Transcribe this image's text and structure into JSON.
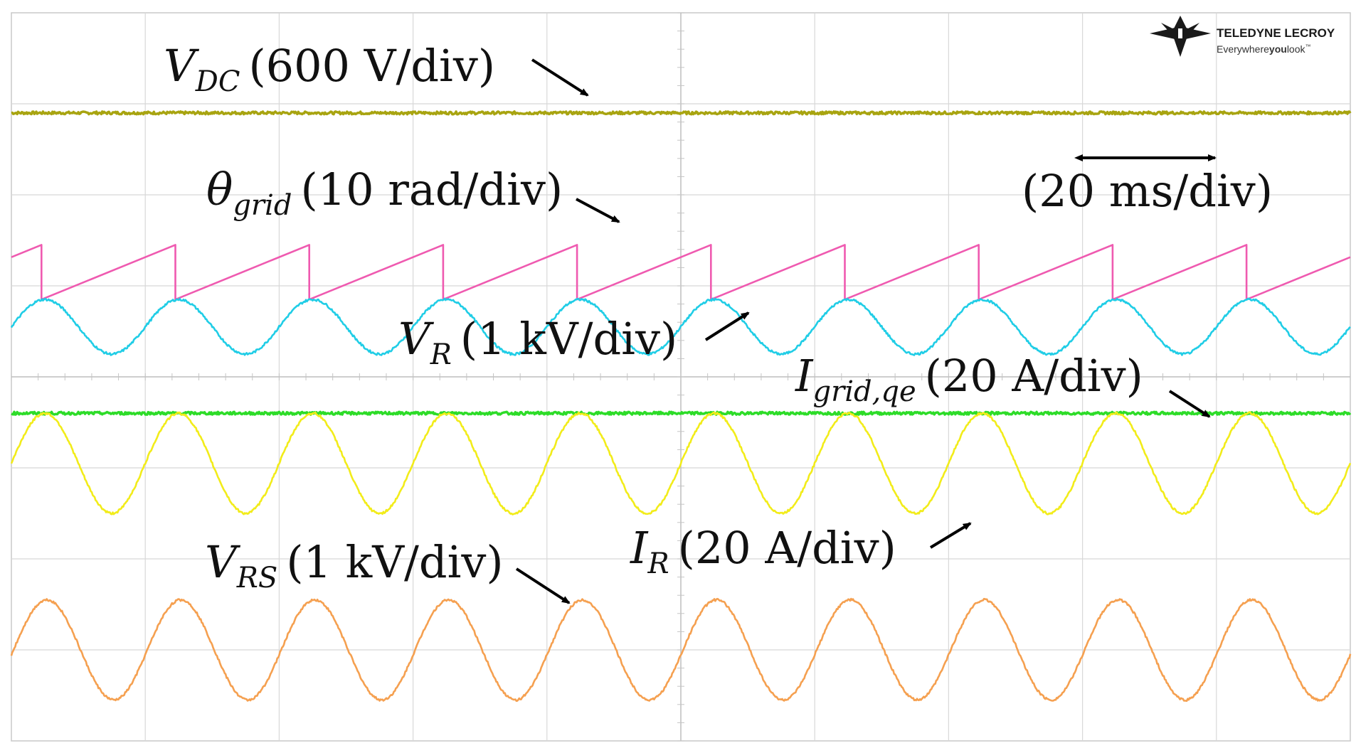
{
  "brand": {
    "name": "TELEDYNE LECROY",
    "tagline_prefix": "Everywhere",
    "tagline_bold": "you",
    "tagline_suffix": "look",
    "tagline_mark": "™"
  },
  "chart_data": {
    "type": "line",
    "title": "",
    "time_scale": "(20 ms/div)",
    "x": {
      "unit": "ms",
      "per_div": 20,
      "range": [
        0,
        200
      ],
      "divisions": 10
    },
    "y": {
      "divisions": 8
    },
    "grid": true,
    "series": [
      {
        "name": "VDC",
        "sym": "V",
        "sub": "DC",
        "scale": "(600 V/div)",
        "shape": "dc",
        "color": "#a8a410",
        "level_div": 6.9
      },
      {
        "name": "θgrid",
        "sym": "θ",
        "sub": "grid",
        "scale": "(10 rad/div)",
        "shape": "sawtooth",
        "color": "#ef5ab0",
        "frequency_hz": 50,
        "min_div": 4.85,
        "max_div": 5.45
      },
      {
        "name": "VR",
        "sym": "V",
        "sub": "R",
        "scale": "(1 kV/div)",
        "shape": "sine",
        "color": "#20cde6",
        "frequency_hz": 50,
        "center_div": 4.55,
        "amplitude_div": 0.3
      },
      {
        "name": "Igrid,qe",
        "sym": "I",
        "sub": "grid,qe",
        "scale": "(20 A/div)",
        "shape": "dc",
        "color": "#2ddc28",
        "level_div": 3.6
      },
      {
        "name": "IR",
        "sym": "I",
        "sub": "R",
        "scale": "(20 A/div)",
        "shape": "sine",
        "color": "#f2ec1a",
        "frequency_hz": 50,
        "center_div": 3.05,
        "amplitude_div": 0.55
      },
      {
        "name": "VRS",
        "sym": "V",
        "sub": "RS",
        "scale": "(1 kV/div)",
        "shape": "sine",
        "color": "#f5a050",
        "frequency_hz": 50,
        "center_div": 1.0,
        "amplitude_div": 0.55
      }
    ]
  }
}
